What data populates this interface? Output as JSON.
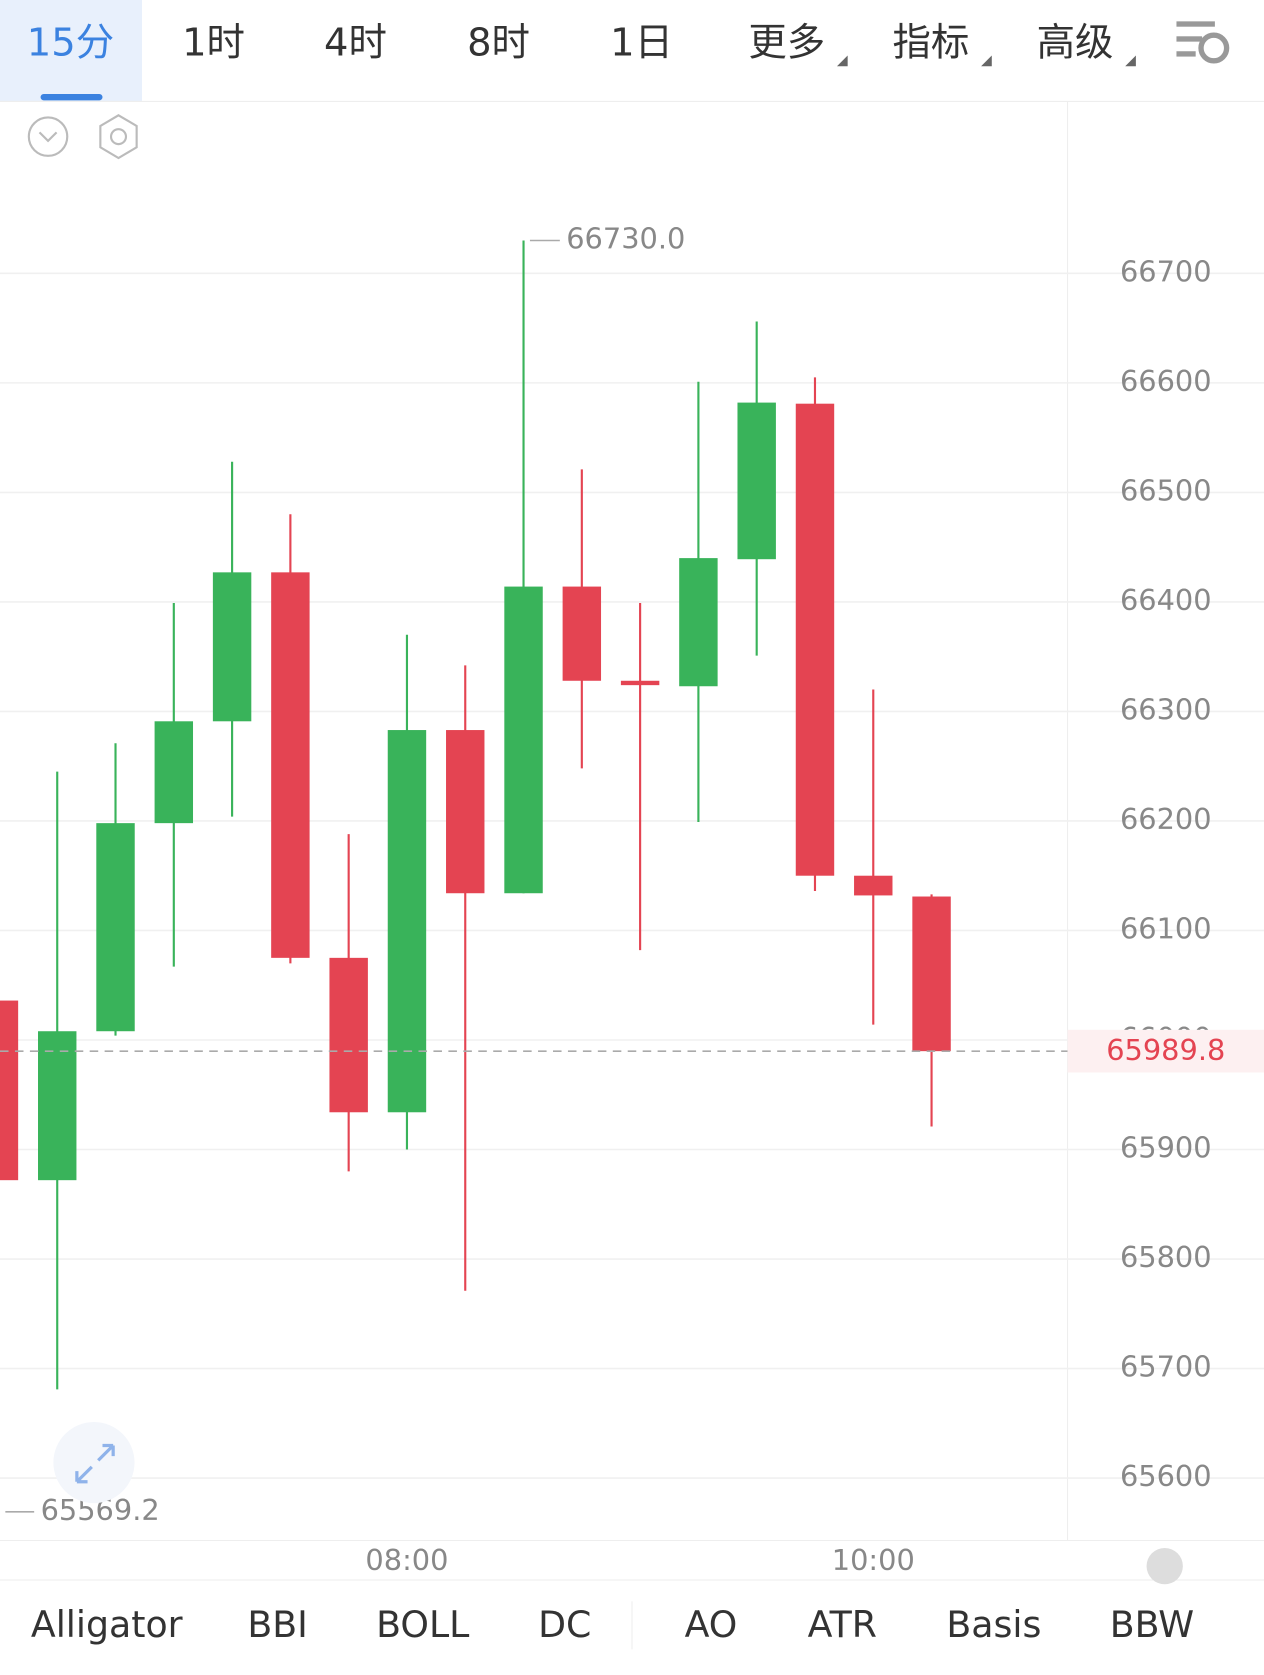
{
  "tabs": [
    "15分",
    "1时",
    "4时",
    "8时",
    "1日",
    "更多",
    "指标",
    "高级"
  ],
  "indicators": [
    "Alligator",
    "BBI",
    "BOLL",
    "DC",
    "AO",
    "ATR",
    "Basis",
    "BBW"
  ],
  "chart_data": {
    "type": "candlestick",
    "categories": [
      null,
      null,
      null,
      null,
      null,
      null,
      null,
      "08:00",
      null,
      null,
      null,
      null,
      null,
      null,
      null,
      "10:00",
      null
    ],
    "open": [
      66036,
      65872,
      66008,
      66198,
      66291,
      66427,
      66075,
      65934,
      66283,
      66134,
      66414,
      66328,
      66323,
      66439,
      66581,
      66150,
      66131
    ],
    "high": [
      66036,
      66245,
      66271,
      66399,
      66528,
      66480,
      66188,
      66370,
      66342,
      66730.0,
      66521,
      66399,
      66601,
      66656,
      66605,
      66320,
      66133
    ],
    "low": [
      65569.2,
      65681,
      66004,
      66067,
      66204,
      66070,
      65880,
      65900,
      65771,
      66134,
      66248,
      66082,
      66199,
      66351,
      66136,
      66014,
      65921
    ],
    "close": [
      65872,
      66008,
      66198,
      66291,
      66427,
      66075,
      65934,
      66283,
      66134,
      66414,
      66328,
      66324,
      66440,
      66582,
      66150,
      66132,
      65989.8
    ],
    "up_color": "#39b35a",
    "down_color": "#e44452",
    "ylim": [
      65543,
      66857
    ],
    "yticks": [
      65600,
      65700,
      65800,
      65900,
      66000,
      66100,
      66200,
      66300,
      66400,
      66500,
      66600,
      66700
    ],
    "grid": true,
    "high_marker": {
      "value": 66730.0,
      "label": "66730.0"
    },
    "low_marker": {
      "value": 65569.2,
      "label": "65569.2"
    },
    "last_price": {
      "value": 65989.8,
      "label": "65989.8"
    }
  }
}
